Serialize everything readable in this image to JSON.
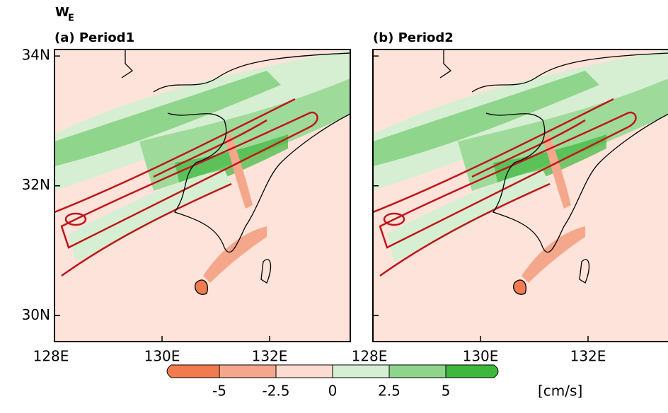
{
  "title": {
    "main": "W",
    "sub": "E"
  },
  "panels": [
    {
      "label": "(a) Period1"
    },
    {
      "label": "(b) Period2"
    }
  ],
  "axes": {
    "xlim": [
      128,
      133.5
    ],
    "ylim": [
      29.6,
      34.1
    ],
    "xticks": [
      {
        "value": 128,
        "label": "128E"
      },
      {
        "value": 130,
        "label": "130E"
      },
      {
        "value": 132,
        "label": "132E"
      }
    ],
    "yticks": [
      {
        "value": 30,
        "label": "30N"
      },
      {
        "value": 32,
        "label": "32N"
      },
      {
        "value": 34,
        "label": "34N"
      }
    ]
  },
  "colorbar": {
    "ticks": [
      -5,
      -2.5,
      0,
      2.5,
      5
    ],
    "colors": [
      "#f27a4f",
      "#f5a78b",
      "#fcdcd0",
      "#d5efd2",
      "#8ed48a",
      "#3db83c"
    ],
    "unit": "[cm/s]"
  }
}
